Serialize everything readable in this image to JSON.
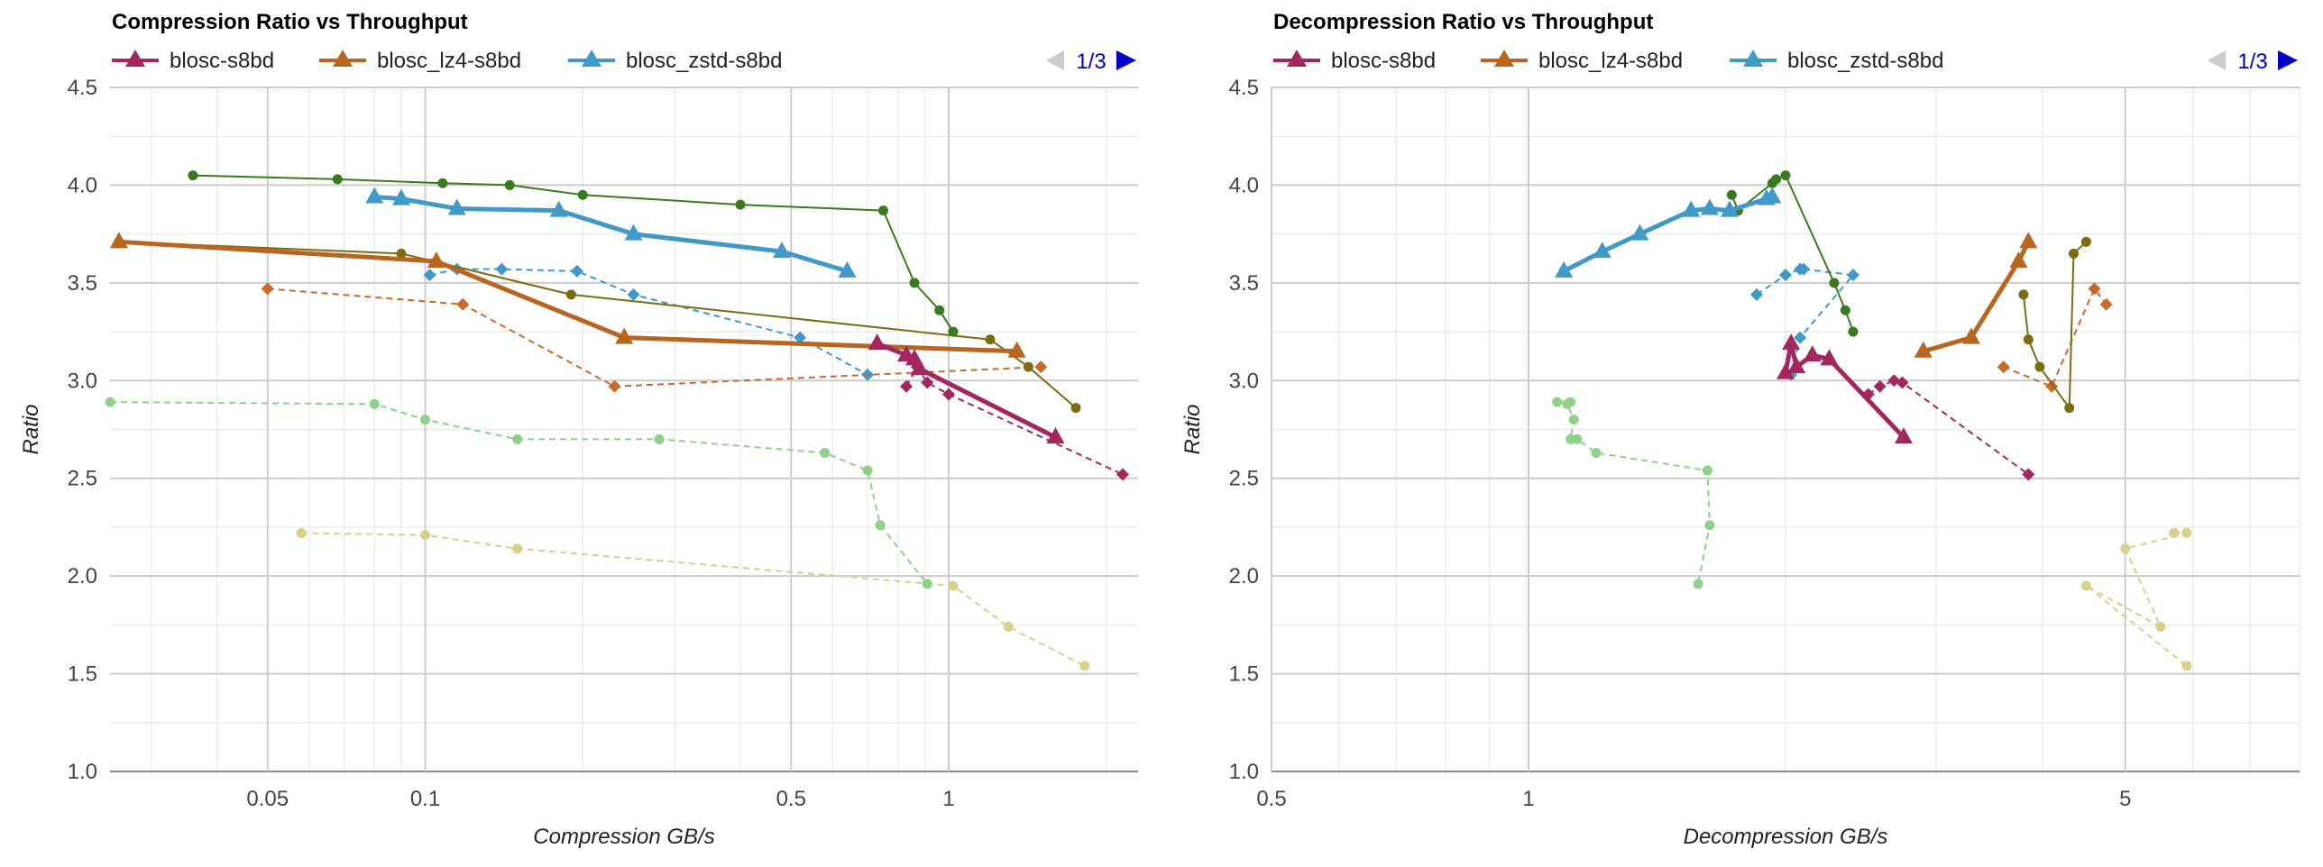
{
  "colors": {
    "blosc": "#a3275e",
    "lz4": "#b9641f",
    "zstd": "#4199c8",
    "dark_green": "#3a7a1f",
    "olive": "#7a6c10",
    "light_green": "#8fd18a",
    "khaki": "#d8d08a",
    "pink_dashed": "#a3275e",
    "orange_dashed": "#c96a2a",
    "blue_dashed": "#4199c8"
  },
  "chart_data": [
    {
      "type": "line",
      "title": "Compression Ratio vs Throughput",
      "xlabel": "Compression GB/s",
      "ylabel": "Ratio",
      "x_scale": "log",
      "xlim": [
        0.025,
        2.3
      ],
      "ylim": [
        1.0,
        4.5
      ],
      "x_ticks": [
        0.05,
        0.1,
        0.5,
        1
      ],
      "x_tick_labels": [
        "0.05",
        "0.1",
        "0.5",
        "1"
      ],
      "y_ticks": [
        1.0,
        1.5,
        2.0,
        2.5,
        3.0,
        3.5,
        4.0,
        4.5
      ],
      "y_tick_labels": [
        "1.0",
        "1.5",
        "2.0",
        "2.5",
        "3.0",
        "3.5",
        "4.0",
        "4.5"
      ],
      "legend_position": "top-left",
      "pager": "1/3",
      "grid": true,
      "series": [
        {
          "name": "blosc-s8bd",
          "color_key": "blosc",
          "style": "solid-thick",
          "marker": "triangle",
          "x": [
            0.73,
            0.83,
            0.86,
            0.88,
            1.6
          ],
          "y": [
            3.19,
            3.13,
            3.11,
            3.06,
            2.71
          ]
        },
        {
          "name": "blosc_lz4-s8bd",
          "color_key": "lz4",
          "style": "solid-thick",
          "marker": "triangle",
          "x": [
            0.026,
            0.105,
            0.24,
            1.35
          ],
          "y": [
            3.71,
            3.61,
            3.22,
            3.15
          ]
        },
        {
          "name": "blosc_zstd-s8bd",
          "color_key": "zstd",
          "style": "solid-thick",
          "marker": "triangle",
          "x": [
            0.08,
            0.09,
            0.115,
            0.18,
            0.25,
            0.48,
            0.64
          ],
          "y": [
            3.94,
            3.93,
            3.88,
            3.87,
            3.75,
            3.66,
            3.56
          ]
        },
        {
          "name": "",
          "color_key": "dark_green",
          "style": "solid-thin",
          "marker": "circle",
          "x": [
            0.036,
            0.068,
            0.108,
            0.145,
            0.2,
            0.4,
            0.75,
            0.86,
            0.96,
            1.02
          ],
          "y": [
            4.05,
            4.03,
            4.01,
            4.0,
            3.95,
            3.9,
            3.87,
            3.5,
            3.36,
            3.25
          ]
        },
        {
          "name": "",
          "color_key": "olive",
          "style": "solid-thin",
          "marker": "circle",
          "x": [
            0.026,
            0.09,
            0.19,
            1.2,
            1.42,
            1.75
          ],
          "y": [
            3.71,
            3.65,
            3.44,
            3.21,
            3.07,
            2.86
          ]
        },
        {
          "name": "",
          "color_key": "pink_dashed",
          "style": "dashed",
          "marker": "diamond",
          "x": [
            0.83,
            0.87,
            0.91,
            1.0,
            2.15
          ],
          "y": [
            2.97,
            3.07,
            2.99,
            2.93,
            2.52
          ]
        },
        {
          "name": "",
          "color_key": "orange_dashed",
          "style": "dashed",
          "marker": "diamond",
          "x": [
            0.05,
            0.118,
            0.23,
            1.5
          ],
          "y": [
            3.47,
            3.39,
            2.97,
            3.07
          ]
        },
        {
          "name": "",
          "color_key": "blue_dashed",
          "style": "dashed",
          "marker": "diamond",
          "x": [
            0.102,
            0.115,
            0.14,
            0.195,
            0.25,
            0.52,
            0.7
          ],
          "y": [
            3.54,
            3.57,
            3.57,
            3.56,
            3.44,
            3.22,
            3.03
          ]
        },
        {
          "name": "",
          "color_key": "light_green",
          "style": "dashed",
          "marker": "circle",
          "x": [
            0.025,
            0.08,
            0.1,
            0.15,
            0.28,
            0.58,
            0.7,
            0.74,
            0.91
          ],
          "y": [
            2.89,
            2.88,
            2.8,
            2.7,
            2.7,
            2.63,
            2.54,
            2.26,
            1.96
          ]
        },
        {
          "name": "",
          "color_key": "khaki",
          "style": "dashed",
          "marker": "circle",
          "x": [
            0.058,
            0.1,
            0.15,
            1.02,
            1.3,
            1.82
          ],
          "y": [
            2.22,
            2.21,
            2.14,
            1.95,
            1.74,
            1.54
          ]
        }
      ]
    },
    {
      "type": "line",
      "title": "Decompression Ratio vs Throughput",
      "xlabel": "Decompression GB/s",
      "ylabel": "Ratio",
      "x_scale": "log",
      "xlim": [
        0.5,
        8.0
      ],
      "ylim": [
        1.0,
        4.5
      ],
      "x_ticks": [
        0.5,
        1,
        5
      ],
      "x_tick_labels": [
        "0.5",
        "1",
        "5"
      ],
      "y_ticks": [
        1.0,
        1.5,
        2.0,
        2.5,
        3.0,
        3.5,
        4.0,
        4.5
      ],
      "y_tick_labels": [
        "1.0",
        "1.5",
        "2.0",
        "2.5",
        "3.0",
        "3.5",
        "4.0",
        "4.5"
      ],
      "legend_position": "top-left",
      "pager": "1/3",
      "grid": true,
      "series": [
        {
          "name": "blosc-s8bd",
          "color_key": "blosc",
          "style": "solid-thick",
          "marker": "triangle",
          "x": [
            2.0,
            2.03,
            2.06,
            2.15,
            2.25,
            2.75
          ],
          "y": [
            3.04,
            3.19,
            3.07,
            3.13,
            3.11,
            2.71
          ]
        },
        {
          "name": "blosc_lz4-s8bd",
          "color_key": "lz4",
          "style": "solid-thick",
          "marker": "triangle",
          "x": [
            2.9,
            3.3,
            3.75,
            3.85
          ],
          "y": [
            3.15,
            3.22,
            3.61,
            3.71
          ]
        },
        {
          "name": "blosc_zstd-s8bd",
          "color_key": "zstd",
          "style": "solid-thick",
          "marker": "triangle",
          "x": [
            1.1,
            1.22,
            1.35,
            1.55,
            1.63,
            1.72,
            1.9,
            1.93
          ],
          "y": [
            3.56,
            3.66,
            3.75,
            3.87,
            3.88,
            3.87,
            3.93,
            3.94
          ]
        },
        {
          "name": "",
          "color_key": "dark_green",
          "style": "solid-thin",
          "marker": "circle",
          "x": [
            1.73,
            1.76,
            1.93,
            1.95,
            2.0,
            2.28,
            2.35,
            2.4
          ],
          "y": [
            3.95,
            3.87,
            4.01,
            4.03,
            4.05,
            3.5,
            3.36,
            3.25
          ]
        },
        {
          "name": "",
          "color_key": "olive",
          "style": "solid-thin",
          "marker": "circle",
          "x": [
            3.8,
            3.85,
            3.97,
            4.3,
            4.35,
            4.5
          ],
          "y": [
            3.44,
            3.21,
            3.07,
            2.86,
            3.65,
            3.71
          ]
        },
        {
          "name": "",
          "color_key": "pink_dashed",
          "style": "dashed",
          "marker": "diamond",
          "x": [
            2.5,
            2.58,
            2.68,
            2.74,
            3.85
          ],
          "y": [
            2.93,
            2.97,
            3.0,
            2.99,
            2.52
          ]
        },
        {
          "name": "",
          "color_key": "orange_dashed",
          "style": "dashed",
          "marker": "diamond",
          "x": [
            3.6,
            4.1,
            4.6,
            4.75
          ],
          "y": [
            3.07,
            2.97,
            3.47,
            3.39
          ]
        },
        {
          "name": "",
          "color_key": "blue_dashed",
          "style": "dashed",
          "marker": "diamond",
          "x": [
            1.85,
            2.0,
            2.08,
            2.1,
            2.4,
            2.08,
            2.03
          ],
          "y": [
            3.44,
            3.54,
            3.57,
            3.57,
            3.54,
            3.22,
            3.03
          ]
        },
        {
          "name": "",
          "color_key": "light_green",
          "style": "dashed",
          "marker": "circle",
          "x": [
            1.08,
            1.12,
            1.11,
            1.13,
            1.12,
            1.14,
            1.2,
            1.62,
            1.63,
            1.58
          ],
          "y": [
            2.89,
            2.89,
            2.88,
            2.8,
            2.7,
            2.7,
            2.63,
            2.54,
            2.26,
            1.96
          ]
        },
        {
          "name": "",
          "color_key": "khaki",
          "style": "dashed",
          "marker": "circle",
          "x": [
            5.7,
            5.9,
            5.0,
            5.5,
            4.5,
            5.9
          ],
          "y": [
            2.22,
            2.22,
            2.14,
            1.74,
            1.95,
            1.54
          ]
        }
      ]
    }
  ]
}
